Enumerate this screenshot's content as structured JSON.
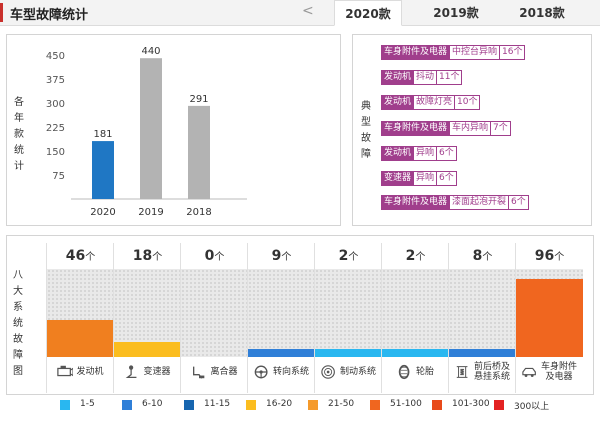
{
  "header": {
    "title": "车型故障统计",
    "prev_arrow": "<",
    "tabs": [
      {
        "label": "2020款",
        "active": true
      },
      {
        "label": "2019款",
        "active": false
      },
      {
        "label": "2018款",
        "active": false
      }
    ]
  },
  "yearly": {
    "label": "各年款统计",
    "chart_data": {
      "type": "bar",
      "categories": [
        "2020",
        "2019",
        "2018"
      ],
      "values": [
        181,
        440,
        291
      ],
      "value_labels": [
        "181",
        "440",
        "291"
      ],
      "colors": [
        "#1f77c4",
        "#b3b3b3",
        "#b3b3b3"
      ],
      "yticks": [
        "450",
        "375",
        "300",
        "225",
        "150",
        "75"
      ],
      "ylim": [
        0,
        450
      ]
    }
  },
  "typical": {
    "label": "典型故障",
    "rows": [
      {
        "category": "车身附件及电器",
        "desc": "中控台异响",
        "count": "16个"
      },
      {
        "category": "发动机",
        "desc": "抖动",
        "count": "11个"
      },
      {
        "category": "发动机",
        "desc": "故障灯亮",
        "count": "10个"
      },
      {
        "category": "车身附件及电器",
        "desc": "车内异响",
        "count": "7个"
      },
      {
        "category": "发动机",
        "desc": "异响",
        "count": "6个"
      },
      {
        "category": "变速器",
        "desc": "异响",
        "count": "6个"
      },
      {
        "category": "车身附件及电器",
        "desc": "漆面起泡开裂",
        "count": "6个"
      }
    ]
  },
  "systems": {
    "label": "八大系统故障图",
    "unit": "个",
    "items": [
      {
        "name": "发动机",
        "count": "46",
        "value": 46,
        "color": "#f07f1f",
        "icon": "engine-icon"
      },
      {
        "name": "变速器",
        "count": "18",
        "value": 18,
        "color": "#fbbd1f",
        "icon": "gear-shift-icon"
      },
      {
        "name": "离合器",
        "count": "0",
        "value": 0,
        "color": "#1aa5e8",
        "icon": "clutch-pedal-icon"
      },
      {
        "name": "转向系统",
        "count": "9",
        "value": 9,
        "color": "#2f7fd8",
        "icon": "steering-wheel-icon"
      },
      {
        "name": "制动系统",
        "count": "2",
        "value": 2,
        "color": "#29b7f0",
        "icon": "brake-disc-icon"
      },
      {
        "name": "轮胎",
        "count": "2",
        "value": 2,
        "color": "#29b7f0",
        "icon": "tire-icon"
      },
      {
        "name": "前后桥及悬挂系统",
        "count": "8",
        "value": 8,
        "color": "#2f7fd8",
        "icon": "suspension-icon"
      },
      {
        "name": "车身附件及电器",
        "count": "96",
        "value": 96,
        "color": "#f0661f",
        "icon": "car-body-icon"
      }
    ],
    "label_lines": [
      [
        "发动机"
      ],
      [
        "变速器"
      ],
      [
        "离合器"
      ],
      [
        "转向系统"
      ],
      [
        "制动系统"
      ],
      [
        "轮胎"
      ],
      [
        "前后桥及",
        "悬挂系统"
      ],
      [
        "车身附件",
        "及电器"
      ]
    ]
  },
  "legend": [
    {
      "label": "1-5",
      "color": "#29b7f0"
    },
    {
      "label": "6-10",
      "color": "#2f7fd8"
    },
    {
      "label": "11-15",
      "color": "#1766b0"
    },
    {
      "label": "16-20",
      "color": "#fbbd1f"
    },
    {
      "label": "21-50",
      "color": "#f59a2b"
    },
    {
      "label": "51-100",
      "color": "#f0661f"
    },
    {
      "label": "101-300",
      "color": "#e84a1a"
    },
    {
      "label": "300以上",
      "color": "#e32222"
    }
  ]
}
